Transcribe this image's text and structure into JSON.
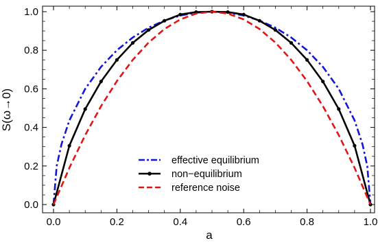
{
  "chart_data": {
    "type": "line",
    "xlabel": "a",
    "ylabel": "S(ω→0)",
    "xlim": [
      0.0,
      1.0
    ],
    "ylim": [
      0.0,
      1.0
    ],
    "xticks": [
      "0.0",
      "0.2",
      "0.4",
      "0.6",
      "0.8",
      "1.0"
    ],
    "yticks": [
      "0.0",
      "0.2",
      "0.4",
      "0.6",
      "0.8",
      "1.0"
    ],
    "grid": false,
    "legend_position": "bottom-center",
    "series": [
      {
        "name": "effective equilibrium",
        "color": "#1515d6",
        "style": "dash-dot",
        "markers": false,
        "x": [
          0.0,
          0.01,
          0.025,
          0.05,
          0.1,
          0.15,
          0.2,
          0.25,
          0.3,
          0.35,
          0.4,
          0.45,
          0.5,
          0.55,
          0.6,
          0.65,
          0.7,
          0.75,
          0.8,
          0.85,
          0.9,
          0.95,
          0.975,
          0.99,
          1.0
        ],
        "y": [
          0.0,
          0.199,
          0.312,
          0.436,
          0.6,
          0.714,
          0.8,
          0.866,
          0.917,
          0.954,
          0.98,
          0.995,
          1.0,
          0.995,
          0.98,
          0.954,
          0.917,
          0.866,
          0.8,
          0.714,
          0.6,
          0.436,
          0.312,
          0.199,
          0.0
        ]
      },
      {
        "name": "non−equilibrium",
        "color": "#000000",
        "style": "solid",
        "markers": true,
        "x": [
          0.0,
          0.05,
          0.1,
          0.15,
          0.2,
          0.25,
          0.3,
          0.35,
          0.4,
          0.45,
          0.5,
          0.55,
          0.6,
          0.65,
          0.7,
          0.75,
          0.8,
          0.85,
          0.9,
          0.95,
          1.0
        ],
        "y": [
          0.0,
          0.305,
          0.495,
          0.638,
          0.75,
          0.838,
          0.905,
          0.953,
          0.985,
          0.998,
          1.0,
          0.998,
          0.985,
          0.953,
          0.905,
          0.838,
          0.75,
          0.638,
          0.495,
          0.305,
          0.0
        ]
      },
      {
        "name": "reference noise",
        "color": "#e01515",
        "style": "dashed",
        "markers": false,
        "x": [
          0.0,
          0.05,
          0.1,
          0.15,
          0.2,
          0.25,
          0.3,
          0.35,
          0.4,
          0.45,
          0.5,
          0.55,
          0.6,
          0.65,
          0.7,
          0.75,
          0.8,
          0.85,
          0.9,
          0.95,
          1.0
        ],
        "y": [
          0.0,
          0.19,
          0.36,
          0.51,
          0.64,
          0.75,
          0.84,
          0.91,
          0.96,
          0.99,
          1.0,
          0.99,
          0.96,
          0.91,
          0.84,
          0.75,
          0.64,
          0.51,
          0.36,
          0.19,
          0.0
        ]
      }
    ]
  }
}
